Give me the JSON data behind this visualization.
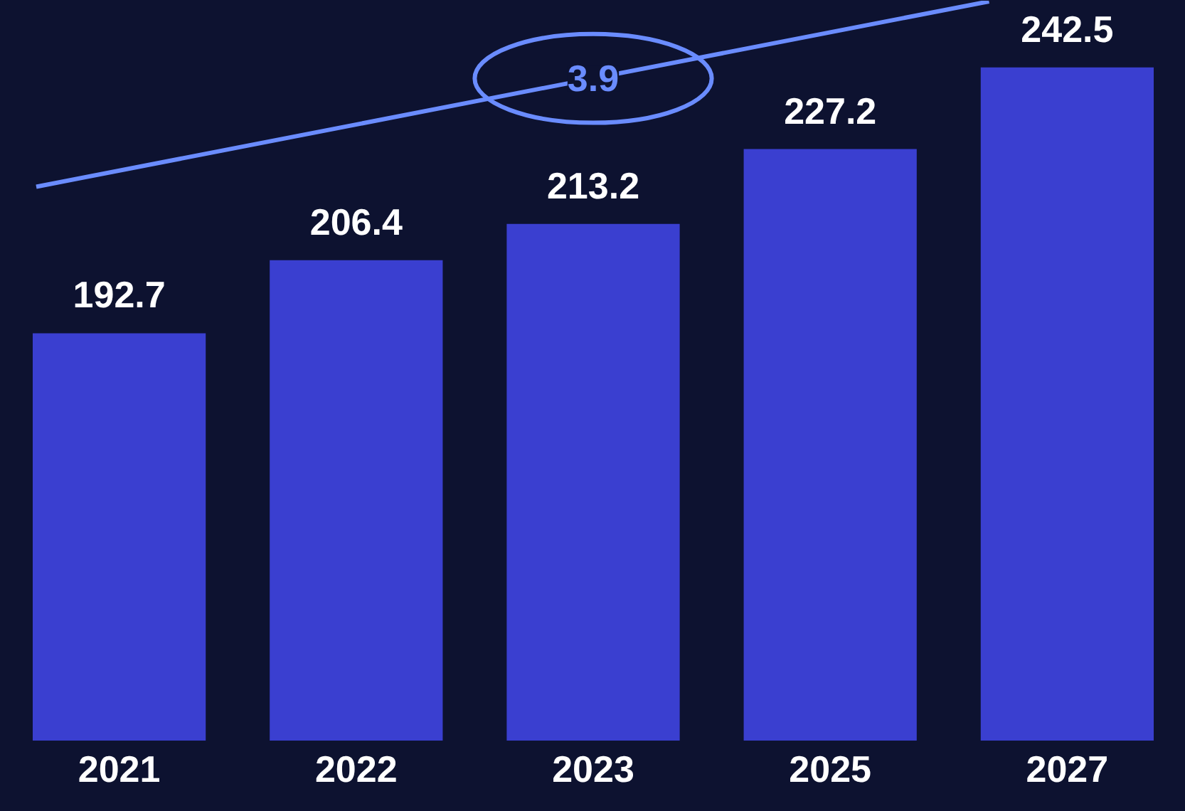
{
  "chart_data": {
    "type": "bar",
    "categories": [
      "2021",
      "2022",
      "2023",
      "2025",
      "2027"
    ],
    "ylim": [
      116.4,
      255
    ],
    "data_labels": true,
    "grid": false,
    "series": [
      {
        "color": "#3a3fd0",
        "values": [
          192.7,
          206.4,
          213.2,
          227.2,
          242.5
        ]
      }
    ],
    "annotations": [
      "3.9"
    ]
  }
}
